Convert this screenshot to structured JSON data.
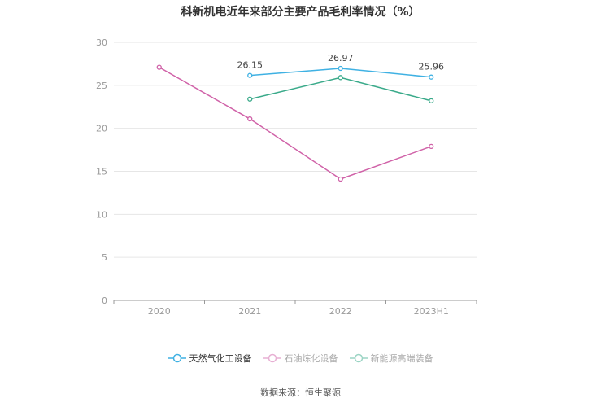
{
  "chart_data": {
    "type": "line",
    "title": "科新机电近年来部分主要产品毛利率情况（%）",
    "categories": [
      "2020",
      "2021",
      "2022",
      "2023H1"
    ],
    "ylim": [
      0,
      30
    ],
    "yticks": [
      0,
      5,
      10,
      15,
      20,
      25,
      30
    ],
    "grid": true,
    "legend_position": "bottom",
    "series": [
      {
        "name": "天然气化工设备",
        "color": "#3fb1e3",
        "values": [
          null,
          26.15,
          26.97,
          25.96
        ],
        "labels": [
          null,
          "26.15",
          "26.97",
          "25.96"
        ],
        "legend_active": true
      },
      {
        "name": "石油炼化设备",
        "color": "#d062a8",
        "values": [
          27.1,
          21.1,
          14.1,
          17.9
        ],
        "legend_active": false
      },
      {
        "name": "新能源高端装备",
        "color": "#3aaa8a",
        "values": [
          null,
          23.4,
          25.9,
          23.2
        ],
        "legend_active": false
      }
    ]
  },
  "source": "数据来源：恒生聚源"
}
